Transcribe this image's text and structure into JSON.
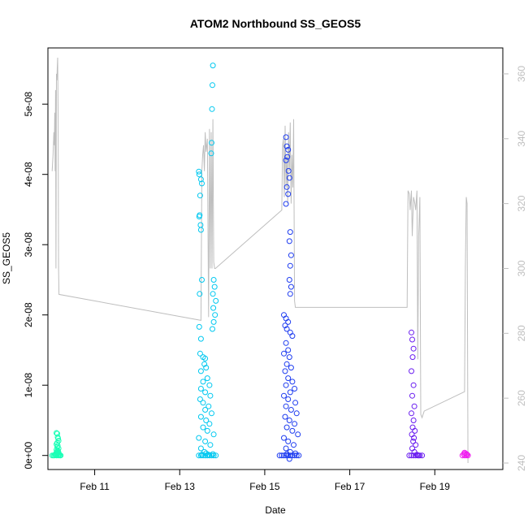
{
  "chart_data": {
    "type": "scatter",
    "title": "ATOM2 Northbound SS_GEOS5",
    "xlabel": "Date",
    "ylabel": "SS_GEOS5",
    "x_axis": {
      "unit": "days (February)",
      "range": [
        9.9,
        20.6
      ],
      "ticks": [
        11,
        13,
        15,
        17,
        19
      ],
      "tick_labels": [
        "Feb 11",
        "Feb 13",
        "Feb 15",
        "Feb 17",
        "Feb 19"
      ]
    },
    "y_axis_left": {
      "range": [
        -2e-09,
        5.8e-08
      ],
      "ticks": [
        0,
        1e-08,
        2e-08,
        3e-08,
        4e-08,
        5e-08
      ],
      "tick_labels": [
        "0e+00",
        "1e-08",
        "2e-08",
        "3e-08",
        "4e-08",
        "5e-08"
      ]
    },
    "y_axis_right": {
      "range": [
        238,
        368
      ],
      "ticks": [
        240,
        260,
        280,
        300,
        320,
        340,
        360
      ],
      "tick_labels": [
        "240",
        "260",
        "280",
        "300",
        "320",
        "340",
        "360"
      ],
      "color": "#bebebe"
    },
    "grid": false,
    "legend": "none",
    "series": [
      {
        "color": "#1affb6",
        "day": "Feb 10",
        "points": [
          [
            10.1,
            3.2e-09
          ],
          [
            10.12,
            3.1e-09
          ],
          [
            10.13,
            2.6e-09
          ],
          [
            10.14,
            2.4e-09
          ],
          [
            10.15,
            2.1e-09
          ],
          [
            10.12,
            1.8e-09
          ],
          [
            10.1,
            1.6e-09
          ],
          [
            10.13,
            1.4e-09
          ],
          [
            10.12,
            1.2e-09
          ],
          [
            10.15,
            1e-09
          ],
          [
            10.1,
            8e-10
          ],
          [
            10.13,
            7e-10
          ],
          [
            10.14,
            6e-10
          ],
          [
            10.11,
            5e-10
          ],
          [
            10.15,
            4e-10
          ],
          [
            10.12,
            3.5e-10
          ],
          [
            10.09,
            3e-10
          ],
          [
            10.13,
            2.5e-10
          ],
          [
            10.16,
            2e-10
          ],
          [
            10.07,
            1e-10
          ],
          [
            10.05,
            0.0
          ],
          [
            10.1,
            0.0
          ],
          [
            10.14,
            0.0
          ],
          [
            10.18,
            0.0
          ],
          [
            10.03,
            0.0
          ],
          [
            10.08,
            5e-11
          ],
          [
            10.16,
            5e-11
          ],
          [
            10.0,
            0.0
          ],
          [
            10.2,
            0.0
          ],
          [
            10.11,
            1.5e-10
          ]
        ]
      },
      {
        "color": "#00c8f0",
        "day": "Feb 13",
        "points": [
          [
            13.78,
            5.55e-08
          ],
          [
            13.77,
            5.27e-08
          ],
          [
            13.76,
            4.93e-08
          ],
          [
            13.75,
            4.45e-08
          ],
          [
            13.74,
            4.3e-08
          ],
          [
            13.45,
            4.04e-08
          ],
          [
            13.46,
            4e-08
          ],
          [
            13.5,
            3.93e-08
          ],
          [
            13.52,
            3.87e-08
          ],
          [
            13.48,
            3.7e-08
          ],
          [
            13.47,
            3.42e-08
          ],
          [
            13.46,
            3.4e-08
          ],
          [
            13.49,
            3.28e-08
          ],
          [
            13.5,
            3.21e-08
          ],
          [
            13.52,
            2.5e-08
          ],
          [
            13.47,
            2.3e-08
          ],
          [
            13.8,
            2.5e-08
          ],
          [
            13.82,
            2.4e-08
          ],
          [
            13.78,
            2.3e-08
          ],
          [
            13.85,
            2.2e-08
          ],
          [
            13.79,
            2.1e-08
          ],
          [
            13.83,
            2e-08
          ],
          [
            13.8,
            1.9e-08
          ],
          [
            13.77,
            1.8e-08
          ],
          [
            13.46,
            1.83e-08
          ],
          [
            13.5,
            1.66e-08
          ],
          [
            13.48,
            1.45e-08
          ],
          [
            13.55,
            1.4e-08
          ],
          [
            13.6,
            1.38e-08
          ],
          [
            13.58,
            1.3e-08
          ],
          [
            13.62,
            1.25e-08
          ],
          [
            13.5,
            1.2e-08
          ],
          [
            13.65,
            1.1e-08
          ],
          [
            13.55,
            1.05e-08
          ],
          [
            13.7,
            1e-08
          ],
          [
            13.5,
            9.5e-09
          ],
          [
            13.6,
            9e-09
          ],
          [
            13.72,
            8.5e-09
          ],
          [
            13.48,
            8e-09
          ],
          [
            13.55,
            7.5e-09
          ],
          [
            13.68,
            7e-09
          ],
          [
            13.6,
            6.5e-09
          ],
          [
            13.75,
            6e-09
          ],
          [
            13.5,
            5.5e-09
          ],
          [
            13.62,
            5e-09
          ],
          [
            13.7,
            4.5e-09
          ],
          [
            13.55,
            4e-09
          ],
          [
            13.65,
            3.5e-09
          ],
          [
            13.8,
            3e-09
          ],
          [
            13.45,
            2.5e-09
          ],
          [
            13.6,
            2e-09
          ],
          [
            13.72,
            1.5e-09
          ],
          [
            13.5,
            1e-09
          ],
          [
            13.58,
            5e-10
          ],
          [
            13.65,
            0.0
          ],
          [
            13.45,
            0.0
          ],
          [
            13.5,
            0.0
          ],
          [
            13.55,
            0.0
          ],
          [
            13.6,
            0.0
          ],
          [
            13.7,
            0.0
          ],
          [
            13.75,
            0.0
          ],
          [
            13.8,
            0.0
          ],
          [
            13.85,
            0.0
          ],
          [
            13.52,
            1e-10
          ],
          [
            13.68,
            1e-10
          ],
          [
            13.78,
            2e-10
          ],
          [
            13.62,
            3e-10
          ]
        ]
      },
      {
        "color": "#1e3cf0",
        "day": "Feb 15",
        "points": [
          [
            15.5,
            4.53e-08
          ],
          [
            15.52,
            4.4e-08
          ],
          [
            15.55,
            4.35e-08
          ],
          [
            15.53,
            4.25e-08
          ],
          [
            15.5,
            4.2e-08
          ],
          [
            15.56,
            4.05e-08
          ],
          [
            15.58,
            3.95e-08
          ],
          [
            15.52,
            3.82e-08
          ],
          [
            15.55,
            3.72e-08
          ],
          [
            15.5,
            3.58e-08
          ],
          [
            15.6,
            3.18e-08
          ],
          [
            15.58,
            3.05e-08
          ],
          [
            15.62,
            2.85e-08
          ],
          [
            15.6,
            2.7e-08
          ],
          [
            15.58,
            2.5e-08
          ],
          [
            15.62,
            2.4e-08
          ],
          [
            15.6,
            2.3e-08
          ],
          [
            15.45,
            2e-08
          ],
          [
            15.5,
            1.95e-08
          ],
          [
            15.55,
            1.9e-08
          ],
          [
            15.48,
            1.85e-08
          ],
          [
            15.52,
            1.8e-08
          ],
          [
            15.6,
            1.75e-08
          ],
          [
            15.65,
            1.7e-08
          ],
          [
            15.5,
            1.6e-08
          ],
          [
            15.55,
            1.5e-08
          ],
          [
            15.45,
            1.45e-08
          ],
          [
            15.58,
            1.4e-08
          ],
          [
            15.52,
            1.3e-08
          ],
          [
            15.62,
            1.25e-08
          ],
          [
            15.48,
            1.2e-08
          ],
          [
            15.55,
            1.1e-08
          ],
          [
            15.65,
            1.05e-08
          ],
          [
            15.5,
            1e-08
          ],
          [
            15.7,
            9.5e-09
          ],
          [
            15.6,
            9e-09
          ],
          [
            15.45,
            8.5e-09
          ],
          [
            15.55,
            8e-09
          ],
          [
            15.72,
            7.5e-09
          ],
          [
            15.5,
            7e-09
          ],
          [
            15.62,
            6.5e-09
          ],
          [
            15.75,
            6e-09
          ],
          [
            15.48,
            5.5e-09
          ],
          [
            15.58,
            5e-09
          ],
          [
            15.7,
            4.5e-09
          ],
          [
            15.52,
            4e-09
          ],
          [
            15.65,
            3.5e-09
          ],
          [
            15.78,
            3e-09
          ],
          [
            15.45,
            2.5e-09
          ],
          [
            15.55,
            2e-09
          ],
          [
            15.68,
            1.5e-09
          ],
          [
            15.5,
            1e-09
          ],
          [
            15.6,
            5e-10
          ],
          [
            15.4,
            0.0
          ],
          [
            15.45,
            0.0
          ],
          [
            15.5,
            0.0
          ],
          [
            15.55,
            0.0
          ],
          [
            15.6,
            0.0
          ],
          [
            15.65,
            0.0
          ],
          [
            15.7,
            0.0
          ],
          [
            15.75,
            0.0
          ],
          [
            15.8,
            0.0
          ],
          [
            15.35,
            0.0
          ],
          [
            15.58,
            -5e-10
          ],
          [
            15.52,
            2e-10
          ],
          [
            15.72,
            3e-10
          ]
        ]
      },
      {
        "color": "#6a1ef0",
        "day": "Feb 18",
        "points": [
          [
            18.45,
            1.75e-08
          ],
          [
            18.47,
            1.65e-08
          ],
          [
            18.5,
            1.52e-08
          ],
          [
            18.48,
            1.4e-08
          ],
          [
            18.45,
            1.2e-08
          ],
          [
            18.5,
            1e-08
          ],
          [
            18.47,
            8.5e-09
          ],
          [
            18.52,
            7e-09
          ],
          [
            18.45,
            6e-09
          ],
          [
            18.5,
            5e-09
          ],
          [
            18.48,
            4e-09
          ],
          [
            18.53,
            3.5e-09
          ],
          [
            18.46,
            3e-09
          ],
          [
            18.51,
            2.5e-09
          ],
          [
            18.49,
            2e-09
          ],
          [
            18.55,
            1.5e-09
          ],
          [
            18.47,
            1e-09
          ],
          [
            18.52,
            5e-10
          ],
          [
            18.4,
            0.0
          ],
          [
            18.45,
            0.0
          ],
          [
            18.5,
            0.0
          ],
          [
            18.55,
            0.0
          ],
          [
            18.6,
            0.0
          ],
          [
            18.65,
            0.0
          ],
          [
            18.7,
            0.0
          ],
          [
            18.58,
            1e-10
          ],
          [
            18.62,
            0.0
          ]
        ]
      },
      {
        "color": "#f01ef0",
        "day": "Feb 19",
        "points": [
          [
            19.65,
            0.0
          ],
          [
            19.68,
            2e-10
          ],
          [
            19.7,
            0.0
          ],
          [
            19.72,
            3e-10
          ],
          [
            19.74,
            0.0
          ],
          [
            19.76,
            1e-10
          ],
          [
            19.78,
            0.0
          ],
          [
            19.7,
            4e-10
          ],
          [
            19.75,
            2e-10
          ]
        ]
      }
    ],
    "secondary_line": {
      "color": "#bebebe",
      "axis": "right",
      "points": [
        [
          10.0,
          330
        ],
        [
          10.02,
          335
        ],
        [
          10.04,
          342
        ],
        [
          10.05,
          338
        ],
        [
          10.06,
          348
        ],
        [
          10.07,
          330
        ],
        [
          10.08,
          355
        ],
        [
          10.09,
          300
        ],
        [
          10.1,
          360
        ],
        [
          10.11,
          358
        ],
        [
          10.12,
          362
        ],
        [
          10.13,
          365
        ],
        [
          10.14,
          345
        ],
        [
          10.15,
          300
        ],
        [
          10.16,
          292
        ],
        [
          13.5,
          284
        ],
        [
          13.52,
          330
        ],
        [
          13.54,
          335
        ],
        [
          13.56,
          338
        ],
        [
          13.58,
          330
        ],
        [
          13.6,
          342
        ],
        [
          13.62,
          336
        ],
        [
          13.65,
          340
        ],
        [
          13.68,
          285
        ],
        [
          13.7,
          343
        ],
        [
          13.72,
          300
        ],
        [
          13.74,
          342
        ],
        [
          13.76,
          300
        ],
        [
          13.78,
          346
        ],
        [
          13.8,
          302
        ],
        [
          13.82,
          300
        ],
        [
          13.84,
          300
        ],
        [
          15.4,
          318
        ],
        [
          15.42,
          338
        ],
        [
          15.44,
          340
        ],
        [
          15.46,
          322
        ],
        [
          15.48,
          344
        ],
        [
          15.5,
          325
        ],
        [
          15.52,
          335
        ],
        [
          15.54,
          320
        ],
        [
          15.56,
          342
        ],
        [
          15.58,
          330
        ],
        [
          15.6,
          345
        ],
        [
          15.62,
          320
        ],
        [
          15.64,
          335
        ],
        [
          15.66,
          325
        ],
        [
          15.68,
          346
        ],
        [
          15.7,
          290
        ],
        [
          15.72,
          288
        ],
        [
          18.35,
          288
        ],
        [
          18.37,
          324
        ],
        [
          18.4,
          323
        ],
        [
          18.42,
          318
        ],
        [
          18.45,
          324
        ],
        [
          18.47,
          310
        ],
        [
          18.5,
          322
        ],
        [
          18.53,
          320
        ],
        [
          18.55,
          318
        ],
        [
          18.58,
          324
        ],
        [
          18.6,
          272
        ],
        [
          18.62,
          310
        ],
        [
          18.65,
          322
        ],
        [
          18.67,
          255
        ],
        [
          18.7,
          254
        ],
        [
          18.75,
          256
        ],
        [
          19.7,
          262
        ],
        [
          19.72,
          300
        ],
        [
          19.74,
          322
        ],
        [
          19.76,
          320
        ],
        [
          19.78,
          240
        ]
      ]
    }
  }
}
